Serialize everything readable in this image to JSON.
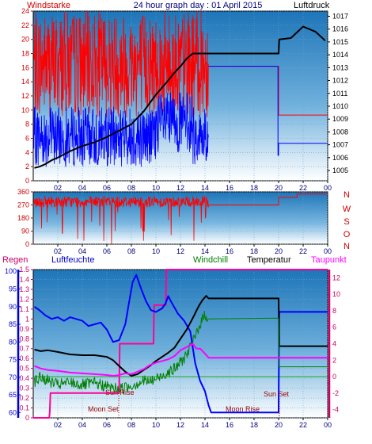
{
  "chart_data": [
    {
      "type": "line",
      "title": "24 hour graph day : 01 April 2015",
      "left_axis_label": "Windstarke",
      "right_axis_label": "Luftdruck",
      "x_ticks": [
        "02",
        "04",
        "06",
        "08",
        "10",
        "12",
        "14",
        "16",
        "18",
        "20",
        "22",
        "00"
      ],
      "y_left_ticks": [
        0,
        2,
        4,
        6,
        8,
        10,
        12,
        14,
        16,
        18,
        20,
        22,
        24
      ],
      "y_left_range": [
        0,
        24
      ],
      "y_right_ticks": [
        1005,
        1006,
        1007,
        1008,
        1009,
        1010,
        1011,
        1012,
        1013,
        1014,
        1015,
        1016,
        1017
      ],
      "y_right_range": [
        1004.2,
        1017.4
      ],
      "colors": {
        "gust": "#ff0000",
        "wind": "#0000ff",
        "pressure": "#000000",
        "axis_left": "#cc0000"
      },
      "series": [
        {
          "key": "pressure",
          "axis": "right",
          "points": [
            [
              0.1,
              1005.2
            ],
            [
              0.5,
              1005.3
            ],
            [
              1,
              1005.5
            ],
            [
              1.5,
              1005.8
            ],
            [
              2,
              1006
            ],
            [
              3,
              1006.5
            ],
            [
              4,
              1006.9
            ],
            [
              5,
              1007.2
            ],
            [
              6,
              1007.6
            ],
            [
              7,
              1008.1
            ],
            [
              8,
              1008.6
            ],
            [
              9,
              1009.6
            ],
            [
              10,
              1010.9
            ],
            [
              11,
              1012
            ],
            [
              11.5,
              1012.6
            ],
            [
              12,
              1013.1
            ],
            [
              12.5,
              1013.7
            ],
            [
              13,
              1014.1
            ],
            [
              14.3,
              1014.1
            ],
            [
              20,
              1014.1
            ],
            [
              20.05,
              1015.2
            ],
            [
              21,
              1015.3
            ],
            [
              22,
              1016.2
            ],
            [
              23,
              1015.8
            ],
            [
              23.8,
              1015.1
            ]
          ]
        },
        {
          "key": "gust_level",
          "axis": "left",
          "points": [
            [
              14.3,
              16.2
            ],
            [
              20,
              16.2
            ],
            [
              20,
              9.3
            ],
            [
              24,
              9.3
            ]
          ]
        },
        {
          "key": "wind_level",
          "axis": "left",
          "points": [
            [
              14.3,
              16.2
            ],
            [
              19.95,
              16.2
            ],
            [
              19.95,
              3.6
            ],
            [
              20,
              3.6
            ],
            [
              20,
              5.3
            ],
            [
              24,
              5.3
            ]
          ]
        }
      ]
    },
    {
      "type": "line",
      "title": "",
      "direction_labels": [
        "N",
        "W",
        "S",
        "O",
        "N"
      ],
      "x_ticks": [
        "02",
        "04",
        "06",
        "08",
        "10",
        "12",
        "14",
        "16",
        "18",
        "20",
        "22",
        "00"
      ],
      "y_ticks": [
        0,
        90,
        180,
        270,
        360
      ],
      "y_range": [
        0,
        360
      ],
      "colors": {
        "direction": "#ff0000",
        "axis": "#cc0000"
      },
      "series": [
        {
          "key": "direction_level",
          "points": [
            [
              14.3,
              270
            ],
            [
              20,
              270
            ],
            [
              20,
              322
            ],
            [
              21.5,
              322
            ],
            [
              21.5,
              345
            ],
            [
              24,
              345
            ]
          ]
        }
      ]
    },
    {
      "type": "line",
      "title": "",
      "labels": {
        "rain": "Regen",
        "humidity": "Luftfeuchte",
        "windchill": "Windchill",
        "temperature": "Temperatur",
        "dewpoint": "Taupunkt"
      },
      "x_ticks": [
        "02",
        "04",
        "06",
        "08",
        "10",
        "12",
        "14",
        "16",
        "18",
        "20",
        "22",
        "00"
      ],
      "rain_ticks": [
        0,
        0.1,
        0.2,
        0.3,
        0.4,
        0.5,
        0.6,
        0.7,
        0.8,
        0.9,
        1,
        1.1,
        1.2,
        1.3,
        1.4,
        1.5
      ],
      "rain_range": [
        0,
        1.5
      ],
      "humidity_ticks": [
        60,
        65,
        70,
        75,
        80,
        85,
        90,
        95,
        100
      ],
      "humidity_range": [
        58.5,
        100.5
      ],
      "temperature_ticks": [
        -4,
        -2,
        0,
        2,
        4,
        6,
        8,
        10,
        12
      ],
      "temperature_range": [
        -5,
        13
      ],
      "annotations": {
        "sun_rise": "Sun Rise",
        "sun_set": "Sun Set",
        "moon_set": "Moon Set",
        "moon_rise": "Moon Rise"
      },
      "colors": {
        "rain": "#ff0099",
        "humidity": "#0000ff",
        "windchill": "#008000",
        "temperature": "#000000",
        "dewpoint": "#ff00ff",
        "rain_axis": "#cc0066",
        "humidity_axis": "#0000cc",
        "temperature_axis": "#cc0066"
      },
      "series": [
        {
          "key": "rain",
          "axis": "rain",
          "points": [
            [
              0,
              0
            ],
            [
              1.3,
              0
            ],
            [
              1.35,
              0.06
            ],
            [
              1.4,
              0.25
            ],
            [
              7,
              0.25
            ],
            [
              7.05,
              0.75
            ],
            [
              9.8,
              0.75
            ],
            [
              9.85,
              1.14
            ],
            [
              10.8,
              1.14
            ],
            [
              10.85,
              1.5
            ],
            [
              24,
              1.5
            ]
          ]
        },
        {
          "key": "humidity",
          "axis": "humidity",
          "points": [
            [
              0.1,
              90
            ],
            [
              0.5,
              89
            ],
            [
              1,
              87.5
            ],
            [
              1.5,
              86.5
            ],
            [
              2,
              87
            ],
            [
              2.5,
              86
            ],
            [
              3,
              87
            ],
            [
              3.5,
              86.5
            ],
            [
              4,
              86
            ],
            [
              4.5,
              84.5
            ],
            [
              5,
              85
            ],
            [
              5.5,
              85.5
            ],
            [
              6,
              83.5
            ],
            [
              6.5,
              80
            ],
            [
              7,
              80.5
            ],
            [
              7.5,
              85
            ],
            [
              7.8,
              91
            ],
            [
              8.1,
              97
            ],
            [
              8.4,
              99
            ],
            [
              8.8,
              95
            ],
            [
              9.2,
              91.5
            ],
            [
              9.6,
              89
            ],
            [
              10,
              88.5
            ],
            [
              10.5,
              89.5
            ],
            [
              10.8,
              91
            ],
            [
              11,
              93
            ],
            [
              11.3,
              91
            ],
            [
              11.8,
              88
            ],
            [
              12.3,
              86
            ],
            [
              12.8,
              83
            ],
            [
              13.2,
              74
            ],
            [
              13.6,
              69
            ],
            [
              14,
              66
            ],
            [
              14.3,
              62
            ],
            [
              14.5,
              60
            ],
            [
              20,
              60
            ],
            [
              20.05,
              88.5
            ],
            [
              24,
              88.5
            ]
          ]
        },
        {
          "key": "temperature",
          "axis": "temperature",
          "points": [
            [
              0.1,
              3.3
            ],
            [
              0.6,
              3.1
            ],
            [
              1.2,
              3.2
            ],
            [
              2,
              3
            ],
            [
              3,
              2.7
            ],
            [
              4,
              2.6
            ],
            [
              5,
              2.6
            ],
            [
              6,
              2.4
            ],
            [
              6.5,
              2
            ],
            [
              7,
              1.3
            ],
            [
              7.5,
              0.6
            ],
            [
              8,
              0.1
            ],
            [
              8.5,
              0.3
            ],
            [
              9,
              0.8
            ],
            [
              9.5,
              1.3
            ],
            [
              10,
              1.9
            ],
            [
              10.5,
              2.4
            ],
            [
              11,
              2.9
            ],
            [
              11.5,
              3.5
            ],
            [
              12,
              4.6
            ],
            [
              12.5,
              5.7
            ],
            [
              13,
              7.1
            ],
            [
              13.5,
              8.6
            ],
            [
              13.8,
              9.3
            ],
            [
              14.1,
              9.8
            ],
            [
              14.3,
              9.5
            ],
            [
              20,
              9.5
            ],
            [
              20.05,
              3.7
            ],
            [
              24,
              3.7
            ]
          ]
        },
        {
          "key": "windchill",
          "axis": "temperature",
          "points": [
            [
              0.1,
              -0.6
            ],
            [
              0.6,
              -0.1
            ],
            [
              1.2,
              -0.5
            ],
            [
              2,
              -1
            ],
            [
              3,
              -0.7
            ],
            [
              4,
              -1
            ],
            [
              5,
              -0.8
            ],
            [
              6,
              -1.2
            ],
            [
              7,
              -1.5
            ],
            [
              7.5,
              -1.3
            ],
            [
              8,
              -1.1
            ],
            [
              8.5,
              -0.8
            ],
            [
              9,
              -0.5
            ],
            [
              9.5,
              -0.6
            ],
            [
              10,
              -0.3
            ],
            [
              10.5,
              0.1
            ],
            [
              11,
              0.6
            ],
            [
              11.5,
              0.9
            ],
            [
              12,
              1.7
            ],
            [
              12.5,
              2.7
            ],
            [
              13,
              4.1
            ],
            [
              13.5,
              6.1
            ],
            [
              14,
              7.5
            ],
            [
              14.3,
              7.1
            ],
            [
              20,
              7.1
            ],
            [
              20.05,
              1.2
            ],
            [
              24,
              1.2
            ]
          ]
        },
        {
          "key": "dewpoint",
          "axis": "temperature",
          "points": [
            [
              0.1,
              1.3
            ],
            [
              0.6,
              1
            ],
            [
              1.2,
              0.8
            ],
            [
              2,
              0.7
            ],
            [
              3,
              0.5
            ],
            [
              4,
              0.4
            ],
            [
              5,
              0.3
            ],
            [
              6,
              0.2
            ],
            [
              6.5,
              0.1
            ],
            [
              7,
              0.2
            ],
            [
              7.5,
              0.4
            ],
            [
              8,
              0.3
            ],
            [
              8.5,
              0.6
            ],
            [
              9,
              0.9
            ],
            [
              9.5,
              1.4
            ],
            [
              10,
              1.7
            ],
            [
              10.5,
              1.9
            ],
            [
              11,
              2.1
            ],
            [
              11.5,
              2.5
            ],
            [
              12,
              3.2
            ],
            [
              12.5,
              3.6
            ],
            [
              13,
              4
            ],
            [
              13.3,
              3.4
            ],
            [
              13.6,
              3.4
            ],
            [
              14,
              2.8
            ],
            [
              14.3,
              2.3
            ],
            [
              20,
              2.3
            ],
            [
              20.05,
              2.3
            ],
            [
              24,
              2.3
            ]
          ]
        }
      ]
    }
  ]
}
